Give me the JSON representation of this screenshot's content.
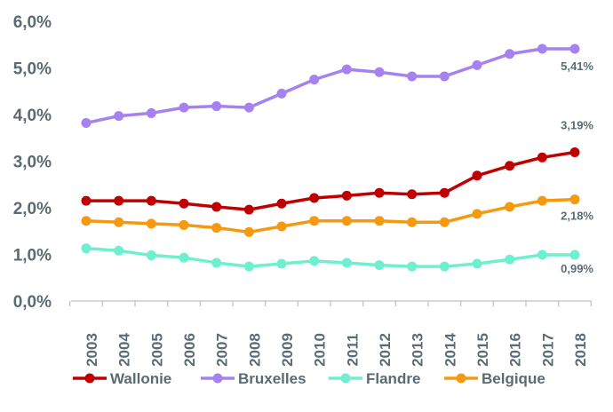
{
  "chart_data": {
    "type": "line",
    "title": "",
    "xlabel": "",
    "ylabel": "",
    "ylim": [
      0,
      6
    ],
    "grid": false,
    "legend_position": "bottom",
    "x": [
      "2003",
      "2004",
      "2005",
      "2006",
      "2007",
      "2008",
      "2009",
      "2010",
      "2011",
      "2012",
      "2013",
      "2014",
      "2015",
      "2016",
      "2017",
      "2018"
    ],
    "y_ticks": [
      {
        "value": 0,
        "label": "0,0%"
      },
      {
        "value": 1,
        "label": "1,0%"
      },
      {
        "value": 2,
        "label": "2,0%"
      },
      {
        "value": 3,
        "label": "3,0%"
      },
      {
        "value": 4,
        "label": "4,0%"
      },
      {
        "value": 5,
        "label": "5,0%"
      },
      {
        "value": 6,
        "label": "6,0%"
      }
    ],
    "series": [
      {
        "name": "Wallonie",
        "color": "#c00000",
        "values": [
          2.15,
          2.15,
          2.15,
          2.09,
          2.02,
          1.96,
          2.09,
          2.21,
          2.26,
          2.32,
          2.29,
          2.32,
          2.69,
          2.9,
          3.08,
          3.19
        ],
        "end_label": "3,19%"
      },
      {
        "name": "Bruxelles",
        "color": "#a682f0",
        "values": [
          3.82,
          3.97,
          4.03,
          4.15,
          4.18,
          4.15,
          4.45,
          4.75,
          4.97,
          4.91,
          4.82,
          4.82,
          5.06,
          5.3,
          5.41,
          5.41
        ],
        "end_label": "5,41%"
      },
      {
        "name": "Flandre",
        "color": "#6ef0d0",
        "values": [
          1.13,
          1.08,
          0.98,
          0.93,
          0.82,
          0.74,
          0.8,
          0.86,
          0.82,
          0.77,
          0.74,
          0.74,
          0.8,
          0.89,
          0.99,
          0.99
        ],
        "end_label": "0,99%"
      },
      {
        "name": "Belgique",
        "color": "#f59a10",
        "values": [
          1.72,
          1.69,
          1.66,
          1.63,
          1.57,
          1.48,
          1.6,
          1.72,
          1.72,
          1.72,
          1.69,
          1.69,
          1.87,
          2.02,
          2.15,
          2.18
        ],
        "end_label": "2,18%"
      }
    ]
  }
}
